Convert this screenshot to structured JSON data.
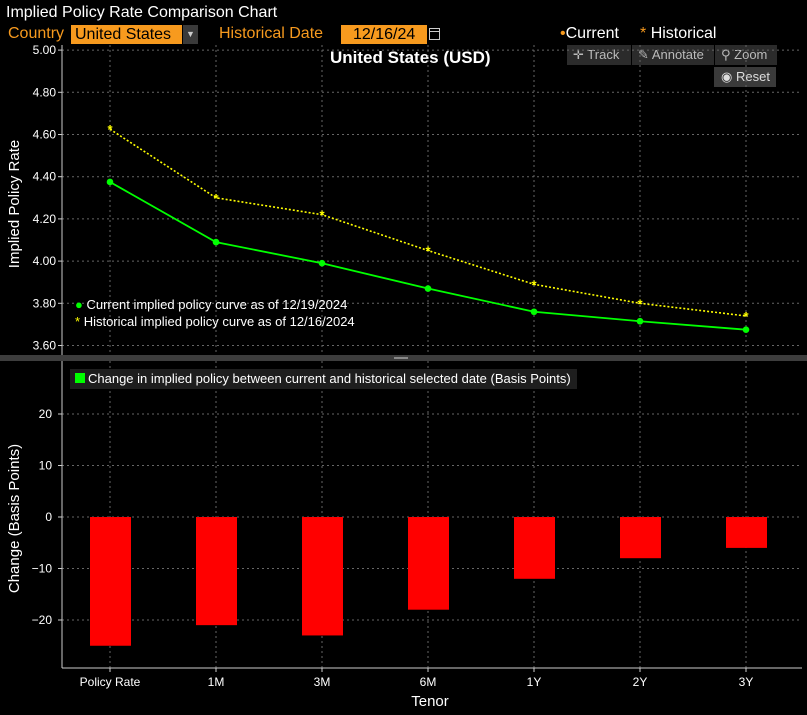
{
  "app_title": "Implied Policy Rate Comparison Chart",
  "controls": {
    "country_label": "Country",
    "country_value": "United States",
    "historical_label": "Historical Date",
    "historical_value": "12/16/24"
  },
  "legend_top": {
    "current_marker": "•",
    "current": "Current",
    "historical_marker": "*",
    "historical": "Historical"
  },
  "toolbar": {
    "track": "Track",
    "annotate": "Annotate",
    "zoom": "Zoom",
    "reset": "Reset"
  },
  "chart_title": "United States (USD)",
  "legend_upper": {
    "current_marker": "●",
    "current_label": "Current implied policy curve as of 12/19/2024",
    "historical_marker": "*",
    "historical_label": "Historical implied policy curve as of 12/16/2024"
  },
  "legend_lower": {
    "label": "Change in implied policy between current and historical selected date (Basis Points)"
  },
  "colors": {
    "current": "#00ff00",
    "historical": "#ffff00",
    "change": "#ff0000",
    "accent": "#f79a1e",
    "grid": "#666666"
  },
  "chart_data": [
    {
      "type": "line",
      "categories": [
        "Policy Rate",
        "1M",
        "3M",
        "6M",
        "1Y",
        "2Y",
        "3Y"
      ],
      "series": [
        {
          "name": "Current implied policy curve as of 12/19/2024",
          "values": [
            4.375,
            4.09,
            3.99,
            3.87,
            3.76,
            3.715,
            3.675
          ]
        },
        {
          "name": "Historical implied policy curve as of 12/16/2024",
          "values": [
            4.625,
            4.3,
            4.22,
            4.05,
            3.89,
            3.8,
            3.74
          ]
        }
      ],
      "ylabel": "Implied Policy Rate",
      "yticks": [
        "5.00",
        "4.80",
        "4.60",
        "4.40",
        "4.20",
        "4.00",
        "3.80",
        "3.60"
      ],
      "ylim": [
        3.56,
        5.02
      ],
      "grid": true
    },
    {
      "type": "bar",
      "categories": [
        "Policy Rate",
        "1M",
        "3M",
        "6M",
        "1Y",
        "2Y",
        "3Y"
      ],
      "values": [
        -25,
        -21,
        -23,
        -18,
        -12,
        -8,
        -6
      ],
      "name": "Change in implied policy between current and historical selected date (Basis Points)",
      "ylabel": "Change (Basis Points)",
      "xlabel": "Tenor",
      "yticks": [
        "20",
        "10",
        "0",
        "−10",
        "−20"
      ],
      "ylim": [
        -30,
        29
      ],
      "grid": true
    }
  ]
}
